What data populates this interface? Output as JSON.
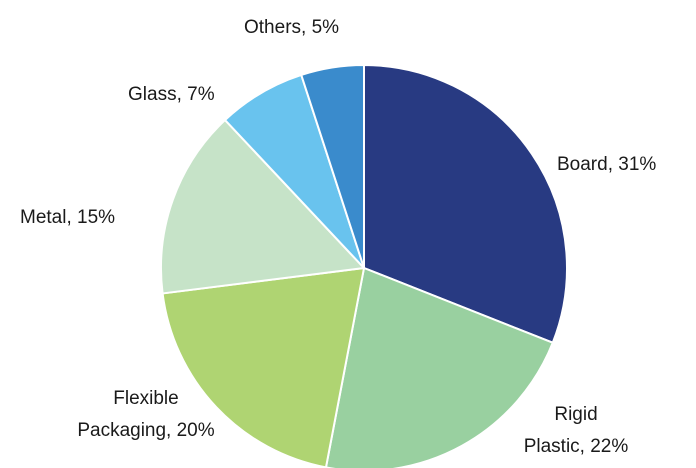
{
  "chart_data": {
    "type": "pie",
    "title": "",
    "start_angle_deg": 0,
    "direction": "clockwise",
    "slices": [
      {
        "name": "Board",
        "value": 31,
        "label_lines": [
          "Board, 31%"
        ],
        "color": "#283a82"
      },
      {
        "name": "Rigid Plastic",
        "value": 22,
        "label_lines": [
          "Rigid",
          "Plastic, 22%"
        ],
        "color": "#99d0a0"
      },
      {
        "name": "Flexible Packaging",
        "value": 20,
        "label_lines": [
          "Flexible",
          "Packaging, 20%"
        ],
        "color": "#afd472"
      },
      {
        "name": "Metal",
        "value": 15,
        "label_lines": [
          "Metal, 15%"
        ],
        "color": "#c6e3c8"
      },
      {
        "name": "Glass",
        "value": 7,
        "label_lines": [
          "Glass, 7%"
        ],
        "color": "#69c3ee"
      },
      {
        "name": "Others",
        "value": 5,
        "label_lines": [
          "Others, 5%"
        ],
        "color": "#3a8bcc"
      }
    ]
  }
}
